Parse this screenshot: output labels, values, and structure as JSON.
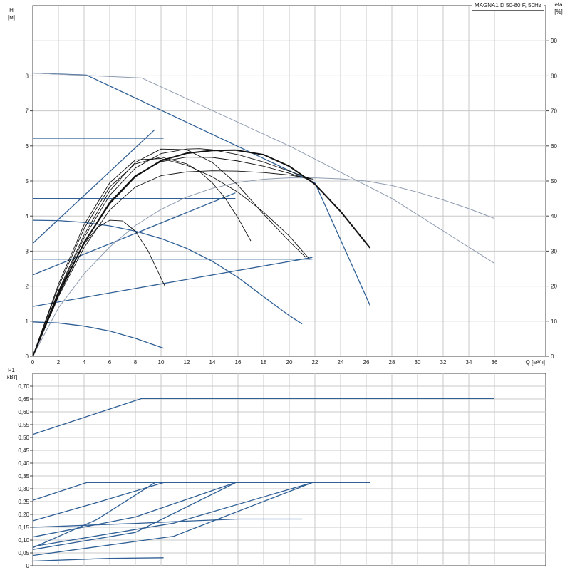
{
  "title": "MAGNA1 D 50-80 F, 50Hz",
  "colors": {
    "bg": "#ffffff",
    "grid": "#c8c8c8",
    "axis": "#444444",
    "blue": "#2f5f95",
    "light": "#8d9bb0",
    "black": "#111111"
  },
  "chart_data": [
    {
      "type": "line",
      "name": "head_eta",
      "xlabel": "Q [м³/ч]",
      "ylabel": [
        "H",
        "[м]"
      ],
      "y2label": [
        "eta",
        "[%]"
      ],
      "xlim": [
        0,
        40
      ],
      "ylim": [
        0,
        10
      ],
      "y2lim": [
        0,
        100
      ],
      "xticks": [
        0,
        2,
        4,
        6,
        8,
        10,
        12,
        14,
        16,
        18,
        20,
        22,
        24,
        26,
        28,
        30,
        32,
        34,
        36
      ],
      "xticklabels": [
        "0",
        "2",
        "4",
        "6",
        "8",
        "10",
        "12",
        "14",
        "16",
        "18",
        "20",
        "22",
        "24",
        "26",
        "28",
        "30",
        "32",
        "34",
        "36"
      ],
      "yticks": [
        0,
        1,
        2,
        3,
        4,
        5,
        6,
        7,
        8
      ],
      "yticklabels": [
        "0",
        "1",
        "2",
        "3",
        "4",
        "5",
        "6",
        "7",
        "8"
      ],
      "y2ticks": [
        0,
        10,
        20,
        30,
        40,
        50,
        60,
        70,
        80,
        90
      ],
      "y2ticklabels": [
        "0",
        "10",
        "20",
        "30",
        "40",
        "50",
        "60",
        "70",
        "80",
        "90"
      ],
      "grid": true,
      "series": [
        {
          "style": "blue",
          "x": [
            0,
            4.2,
            22
          ],
          "y": [
            8.08,
            8.02,
            4.95
          ]
        },
        {
          "style": "blue",
          "x": [
            22,
            26.3
          ],
          "y": [
            4.95,
            1.45
          ]
        },
        {
          "style": "blue",
          "x": [
            0,
            10.2
          ],
          "y": [
            6.22,
            6.22
          ]
        },
        {
          "style": "blue",
          "x": [
            0,
            9.5
          ],
          "y": [
            3.22,
            6.46
          ]
        },
        {
          "style": "blue",
          "x": [
            0,
            15.8
          ],
          "y": [
            4.5,
            4.5
          ]
        },
        {
          "style": "blue",
          "x": [
            0,
            15.8
          ],
          "y": [
            2.32,
            4.66
          ]
        },
        {
          "style": "blue",
          "x": [
            0,
            21.8
          ],
          "y": [
            2.77,
            2.77
          ]
        },
        {
          "style": "blue",
          "x": [
            0,
            21.8
          ],
          "y": [
            1.42,
            2.82
          ]
        },
        {
          "style": "blue",
          "x": [
            0,
            2,
            4,
            6,
            8,
            10,
            12,
            14,
            16,
            18,
            20,
            21
          ],
          "y": [
            3.88,
            3.87,
            3.82,
            3.72,
            3.57,
            3.36,
            3.08,
            2.71,
            2.25,
            1.7,
            1.16,
            0.92
          ]
        },
        {
          "style": "blue",
          "x": [
            0,
            2,
            4,
            6,
            8,
            10.2
          ],
          "y": [
            0.98,
            0.95,
            0.86,
            0.72,
            0.51,
            0.23
          ]
        },
        {
          "style": "light",
          "x": [
            0,
            8.5,
            20,
            28,
            36
          ],
          "y": [
            8.08,
            7.94,
            6.0,
            4.5,
            2.65
          ]
        },
        {
          "style": "light",
          "x": [
            0,
            2,
            4,
            6,
            8,
            10,
            12,
            14,
            16,
            18,
            20,
            22,
            24,
            26,
            28,
            30,
            32,
            34,
            36
          ],
          "y": [
            0,
            13.8,
            23.5,
            31.2,
            37.3,
            41.9,
            45.4,
            47.9,
            49.6,
            50.5,
            50.9,
            50.9,
            50.6,
            50.0,
            48.7,
            46.8,
            44.6,
            42.1,
            39.3
          ]
        },
        {
          "style": "black",
          "x": [
            0,
            2,
            4,
            6,
            8,
            10,
            12,
            14,
            15.8,
            18,
            20,
            22,
            24,
            26.3
          ],
          "y": [
            0,
            17.6,
            32.4,
            43.6,
            51.3,
            55.8,
            57.9,
            58.7,
            58.8,
            57.5,
            54.2,
            49.1,
            41.3,
            30.9
          ]
        },
        {
          "style": "black-thin",
          "x": [
            0,
            2,
            4,
            6,
            8,
            10,
            12,
            14,
            16,
            18,
            20,
            21.9
          ],
          "y": [
            0,
            17,
            31,
            41.7,
            48.3,
            51.5,
            52.6,
            52.9,
            52.8,
            52.4,
            51.7,
            50.5
          ]
        },
        {
          "style": "black-thin",
          "x": [
            0,
            2,
            4,
            6,
            8,
            10,
            12,
            14,
            16,
            18,
            20,
            21.7
          ],
          "y": [
            0,
            17.6,
            32.5,
            44,
            51.6,
            55.5,
            56.8,
            56.7,
            55.7,
            54.2,
            52.2,
            50.3
          ]
        },
        {
          "style": "black-thin",
          "x": [
            0,
            2,
            4,
            6,
            8,
            10,
            12,
            13,
            14,
            16,
            18,
            20,
            21.7
          ],
          "y": [
            0,
            18.2,
            33.8,
            45.9,
            53.7,
            57.8,
            59.1,
            59.2,
            58.9,
            57.5,
            55.4,
            52.8,
            50.6
          ]
        },
        {
          "style": "black-thin",
          "x": [
            0,
            2,
            4,
            6,
            8,
            10,
            12,
            14,
            16,
            18,
            20,
            21.3
          ],
          "y": [
            0,
            18.6,
            34.6,
            47.2,
            55.3,
            59.1,
            58.9,
            55.3,
            48.8,
            40.5,
            32.8,
            28.2
          ]
        },
        {
          "style": "black-thin",
          "x": [
            0,
            2,
            4,
            6,
            8,
            10,
            12,
            14,
            16,
            18,
            20,
            21.6
          ],
          "y": [
            0,
            20.5,
            37.5,
            49.5,
            56,
            56.4,
            54.5,
            51.2,
            46.8,
            41.1,
            34.3,
            27.6
          ]
        },
        {
          "style": "black-thin",
          "x": [
            0,
            2,
            4,
            6,
            8,
            10,
            12,
            13,
            14,
            15,
            16,
            17
          ],
          "y": [
            0,
            19.8,
            36.4,
            48.3,
            54.9,
            56.8,
            54.9,
            52.7,
            49.5,
            45.1,
            39.5,
            32.9
          ]
        },
        {
          "style": "black-thin",
          "x": [
            0,
            2,
            4,
            5,
            6,
            7,
            8,
            9,
            10.3
          ],
          "y": [
            0,
            18.5,
            32,
            36.6,
            38.8,
            38.6,
            35.7,
            30,
            20
          ]
        }
      ]
    },
    {
      "type": "line",
      "name": "power",
      "ylabel": [
        "P1",
        "[кВт]"
      ],
      "xlim": [
        0,
        40
      ],
      "ylim": [
        0,
        0.75
      ],
      "xticks": [
        0,
        2,
        4,
        6,
        8,
        10,
        12,
        14,
        16,
        18,
        20,
        22,
        24,
        26,
        28,
        30,
        32,
        34,
        36
      ],
      "yticks": [
        0,
        0.05,
        0.1,
        0.15,
        0.2,
        0.25,
        0.3,
        0.35,
        0.4,
        0.45,
        0.5,
        0.55,
        0.6,
        0.65,
        0.7
      ],
      "yticklabels": [
        "0",
        "0,05",
        "0,10",
        "0,15",
        "0,20",
        "0,25",
        "0,30",
        "0,35",
        "0,40",
        "0,45",
        "0,50",
        "0,55",
        "0,60",
        "0,65",
        "0,70"
      ],
      "grid": true,
      "series": [
        {
          "style": "blue",
          "x": [
            0,
            4,
            8.5,
            36
          ],
          "y": [
            0.512,
            0.578,
            0.652,
            0.652
          ]
        },
        {
          "style": "blue",
          "x": [
            0,
            4.2,
            26.3
          ],
          "y": [
            0.255,
            0.324,
            0.324
          ]
        },
        {
          "style": "blue",
          "x": [
            0,
            5,
            10.2
          ],
          "y": [
            0.175,
            0.246,
            0.324
          ]
        },
        {
          "style": "blue",
          "x": [
            0,
            5,
            9.5
          ],
          "y": [
            0.07,
            0.18,
            0.323
          ]
        },
        {
          "style": "blue",
          "x": [
            0,
            8,
            15.8
          ],
          "y": [
            0.112,
            0.19,
            0.324
          ]
        },
        {
          "style": "blue",
          "x": [
            0,
            8,
            15.8
          ],
          "y": [
            0.063,
            0.13,
            0.323
          ]
        },
        {
          "style": "blue",
          "x": [
            0,
            11,
            21.8
          ],
          "y": [
            0.075,
            0.166,
            0.324
          ]
        },
        {
          "style": "blue",
          "x": [
            0,
            11,
            21.8
          ],
          "y": [
            0.04,
            0.115,
            0.324
          ]
        },
        {
          "style": "blue",
          "x": [
            0,
            8,
            12,
            16,
            21
          ],
          "y": [
            0.15,
            0.165,
            0.174,
            0.182,
            0.182
          ]
        },
        {
          "style": "blue",
          "x": [
            0,
            6,
            10.2
          ],
          "y": [
            0.018,
            0.029,
            0.031
          ]
        }
      ]
    }
  ]
}
